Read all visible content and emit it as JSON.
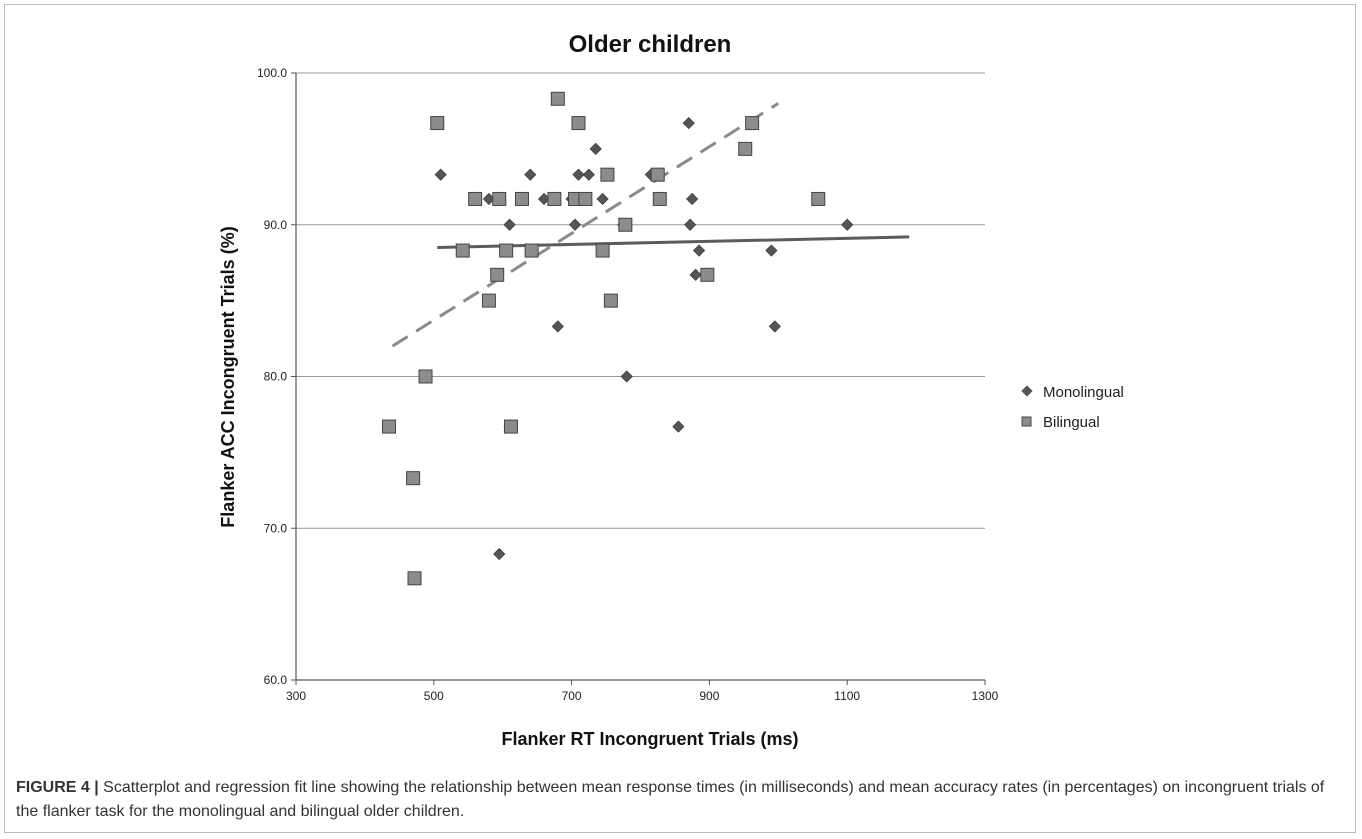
{
  "figure": {
    "caption_label": "FIGURE 4 |",
    "caption_text": " Scatterplot and regression fit line showing the relationship between mean response times (in milliseconds) and mean accuracy rates (in percentages) on incongruent trials of the flanker task for the monolingual and bilingual older children."
  },
  "chart_data": {
    "type": "scatter",
    "title": "Older children",
    "xlabel": "Flanker RT Incongruent Trials (ms)",
    "ylabel": "Flanker ACC Incongruent Trials (%)",
    "xlim": [
      300,
      1300
    ],
    "ylim": [
      60,
      100
    ],
    "xticks": [
      "300",
      "500",
      "700",
      "900",
      "1100",
      "1300"
    ],
    "yticks": [
      "60.0",
      "70.0",
      "80.0",
      "90.0",
      "100.0"
    ],
    "grid": "horizontal",
    "legend_position": "right",
    "series": [
      {
        "name": "Monolingual",
        "marker": "diamond",
        "color": "#555555",
        "points": [
          [
            510,
            93.3
          ],
          [
            580,
            91.7
          ],
          [
            610,
            90.0
          ],
          [
            595,
            68.3
          ],
          [
            610,
            76.7
          ],
          [
            640,
            93.3
          ],
          [
            660,
            91.7
          ],
          [
            680,
            83.3
          ],
          [
            700,
            91.7
          ],
          [
            705,
            90.0
          ],
          [
            710,
            93.3
          ],
          [
            720,
            91.7
          ],
          [
            725,
            93.3
          ],
          [
            735,
            95.0
          ],
          [
            745,
            91.7
          ],
          [
            775,
            90.0
          ],
          [
            780,
            80.0
          ],
          [
            815,
            93.3
          ],
          [
            855,
            76.7
          ],
          [
            870,
            96.7
          ],
          [
            875,
            91.7
          ],
          [
            872,
            90.0
          ],
          [
            885,
            88.3
          ],
          [
            880,
            86.7
          ],
          [
            990,
            88.3
          ],
          [
            995,
            83.3
          ],
          [
            1100,
            90.0
          ]
        ],
        "fit": {
          "x": [
            505,
            1190
          ],
          "y": [
            88.5,
            89.2
          ],
          "style": "solid"
        }
      },
      {
        "name": "Bilingual",
        "marker": "square",
        "color": "#8c8c8c",
        "points": [
          [
            435,
            76.7
          ],
          [
            470,
            73.3
          ],
          [
            472,
            66.7
          ],
          [
            488,
            80.0
          ],
          [
            505,
            96.7
          ],
          [
            542,
            88.3
          ],
          [
            560,
            91.7
          ],
          [
            580,
            85.0
          ],
          [
            592,
            86.7
          ],
          [
            595,
            91.7
          ],
          [
            605,
            88.3
          ],
          [
            612,
            76.7
          ],
          [
            628,
            91.7
          ],
          [
            642,
            88.3
          ],
          [
            675,
            91.7
          ],
          [
            680,
            98.3
          ],
          [
            705,
            91.7
          ],
          [
            710,
            96.7
          ],
          [
            720,
            91.7
          ],
          [
            745,
            88.3
          ],
          [
            752,
            93.3
          ],
          [
            757,
            85.0
          ],
          [
            778,
            90.0
          ],
          [
            825,
            93.3
          ],
          [
            828,
            91.7
          ],
          [
            897,
            86.7
          ],
          [
            952,
            95.0
          ],
          [
            962,
            96.7
          ],
          [
            1058,
            91.7
          ]
        ],
        "fit": {
          "x": [
            440,
            1000
          ],
          "y": [
            82.0,
            98.0
          ],
          "style": "dashed"
        }
      }
    ]
  }
}
